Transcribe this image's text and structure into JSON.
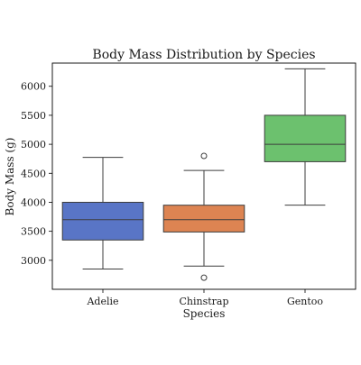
{
  "chart_data": {
    "type": "box",
    "title": "Body Mass Distribution by Species",
    "xlabel": "Species",
    "ylabel": "Body Mass (g)",
    "ylim": [
      2500,
      6400
    ],
    "yticks": [
      3000,
      3500,
      4000,
      4500,
      5000,
      5500,
      6000
    ],
    "grid": false,
    "categories": [
      "Adelie",
      "Chinstrap",
      "Gentoo"
    ],
    "boxes": [
      {
        "category": "Adelie",
        "whisker_low": 2850,
        "q1": 3350,
        "median": 3700,
        "q3": 4000,
        "whisker_high": 4775,
        "outliers": [],
        "color": "#5975c6"
      },
      {
        "category": "Chinstrap",
        "whisker_low": 2900,
        "q1": 3488,
        "median": 3700,
        "q3": 3950,
        "whisker_high": 4550,
        "outliers": [
          2700,
          4800
        ],
        "color": "#dd8452"
      },
      {
        "category": "Gentoo",
        "whisker_low": 3950,
        "q1": 4700,
        "median": 5000,
        "q3": 5500,
        "whisker_high": 6300,
        "outliers": [],
        "color": "#6cc16e"
      }
    ]
  }
}
